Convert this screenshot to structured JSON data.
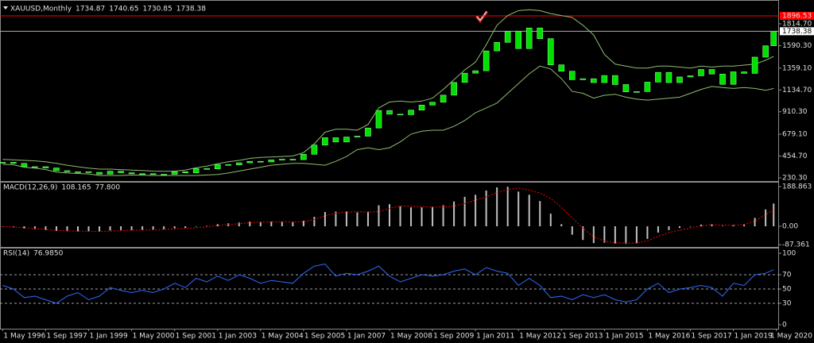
{
  "chart_data": [
    {
      "type": "candlestick",
      "title": "XAUUSD,Monthly",
      "ohlc": [
        1734.87,
        1740.65,
        1730.85,
        1738.38
      ],
      "x": [
        "1996-05",
        "1996-09",
        "1997-01",
        "1997-05",
        "1997-09",
        "1998-01",
        "1998-05",
        "1998-09",
        "1999-01",
        "1999-05",
        "1999-09",
        "2000-01",
        "2000-05",
        "2000-09",
        "2001-01",
        "2001-05",
        "2001-09",
        "2002-01",
        "2002-05",
        "2002-09",
        "2003-01",
        "2003-05",
        "2003-09",
        "2004-01",
        "2004-05",
        "2004-09",
        "2005-01",
        "2005-05",
        "2005-09",
        "2006-01",
        "2006-05",
        "2006-09",
        "2007-01",
        "2007-05",
        "2007-09",
        "2008-01",
        "2008-05",
        "2008-09",
        "2009-01",
        "2009-05",
        "2009-09",
        "2010-01",
        "2010-05",
        "2010-09",
        "2011-01",
        "2011-05",
        "2011-09",
        "2012-01",
        "2012-05",
        "2012-09",
        "2013-01",
        "2013-05",
        "2013-09",
        "2014-01",
        "2014-05",
        "2014-09",
        "2015-01",
        "2015-05",
        "2015-09",
        "2016-01",
        "2016-05",
        "2016-09",
        "2017-01",
        "2017-05",
        "2017-09",
        "2018-01",
        "2018-05",
        "2018-09",
        "2019-01",
        "2019-05",
        "2019-09",
        "2020-01",
        "2020-04"
      ],
      "values": [
        390,
        379,
        345,
        345,
        332,
        304,
        293,
        293,
        287,
        268,
        299,
        283,
        272,
        273,
        265,
        267,
        293,
        282,
        326,
        323,
        367,
        364,
        385,
        400,
        394,
        415,
        422,
        417,
        473,
        568,
        643,
        599,
        650,
        659,
        743,
        923,
        885,
        880,
        927,
        979,
        1008,
        1081,
        1212,
        1307,
        1332,
        1536,
        1624,
        1737,
        1560,
        1772,
        1662,
        1393,
        1327,
        1240,
        1250,
        1210,
        1283,
        1190,
        1115,
        1118,
        1215,
        1315,
        1210,
        1268,
        1280,
        1345,
        1298,
        1192,
        1321,
        1305,
        1472,
        1589,
        1738.38
      ],
      "upper_band": [
        420,
        415,
        410,
        405,
        395,
        380,
        360,
        345,
        330,
        320,
        320,
        315,
        310,
        305,
        300,
        298,
        300,
        310,
        335,
        350,
        375,
        395,
        410,
        430,
        440,
        445,
        450,
        455,
        490,
        580,
        700,
        730,
        730,
        720,
        780,
        950,
        1010,
        1020,
        1010,
        1020,
        1050,
        1140,
        1240,
        1340,
        1420,
        1600,
        1800,
        1900,
        1950,
        1960,
        1950,
        1920,
        1900,
        1880,
        1800,
        1700,
        1500,
        1400,
        1380,
        1360,
        1360,
        1380,
        1380,
        1370,
        1360,
        1380,
        1370,
        1380,
        1380,
        1390,
        1400,
        1440,
        1480
      ],
      "lower_band": [
        370,
        365,
        340,
        330,
        315,
        290,
        280,
        275,
        270,
        255,
        255,
        255,
        260,
        258,
        255,
        255,
        255,
        255,
        255,
        260,
        265,
        280,
        300,
        320,
        340,
        360,
        370,
        380,
        380,
        370,
        360,
        400,
        450,
        520,
        540,
        520,
        540,
        600,
        680,
        710,
        720,
        720,
        760,
        820,
        900,
        950,
        1000,
        1100,
        1200,
        1300,
        1380,
        1350,
        1250,
        1120,
        1100,
        1050,
        1080,
        1090,
        1060,
        1040,
        1030,
        1040,
        1050,
        1060,
        1100,
        1140,
        1170,
        1160,
        1150,
        1160,
        1150,
        1130,
        1150
      ],
      "color": "#00e000",
      "band_color": "#8fbc6f",
      "hline": {
        "value": 1896.53,
        "color": "#ff0000"
      },
      "xlim": [
        "1996-04",
        "2020-06"
      ],
      "ylim": [
        197.6,
        1994.4
      ],
      "yticks": [
        {
          "value": 230.3,
          "label": "230.30"
        },
        {
          "value": 454.7,
          "label": "454.70"
        },
        {
          "value": 679.1,
          "label": "679.10"
        },
        {
          "value": 910.3,
          "label": "910.30"
        },
        {
          "value": 1134.7,
          "label": "1134.70"
        },
        {
          "value": 1359.1,
          "label": "1359.10"
        },
        {
          "value": 1590.3,
          "label": "1590.30"
        },
        {
          "value": 1814.7,
          "label": "1814.70"
        }
      ]
    },
    {
      "type": "macd",
      "title": "MACD(12,26,9)",
      "header_values": [
        108.165,
        {
          "value": 77.8,
          "label": "77.800"
        }
      ],
      "values": [
        -2,
        -5,
        -10,
        -14,
        -18,
        -22,
        -24,
        -24,
        -24,
        -25,
        -20,
        -18,
        -18,
        -17,
        -16,
        -14,
        -10,
        -8,
        -2,
        2,
        10,
        14,
        18,
        22,
        22,
        22,
        22,
        20,
        26,
        45,
        68,
        70,
        70,
        66,
        70,
        100,
        105,
        95,
        90,
        90,
        92,
        100,
        118,
        140,
        150,
        170,
        185,
        188,
        165,
        150,
        120,
        60,
        10,
        -40,
        -65,
        -80,
        -78,
        -82,
        -84,
        -80,
        -60,
        -30,
        -18,
        -8,
        0,
        8,
        10,
        2,
        5,
        10,
        40,
        80,
        108.165
      ],
      "signal": [
        -1,
        -3,
        -7,
        -11,
        -15,
        -19,
        -22,
        -23,
        -24,
        -24,
        -23,
        -21,
        -19,
        -18,
        -17,
        -15,
        -13,
        -10,
        -7,
        -3,
        3,
        8,
        13,
        17,
        20,
        21,
        22,
        21,
        22,
        32,
        50,
        62,
        68,
        69,
        68,
        69,
        85,
        97,
        96,
        93,
        91,
        92,
        96,
        108,
        125,
        140,
        160,
        175,
        182,
        172,
        158,
        132,
        90,
        40,
        -10,
        -50,
        -70,
        -78,
        -80,
        -80,
        -70,
        -48,
        -30,
        -18,
        -8,
        2,
        7,
        6,
        5,
        8,
        25,
        55,
        77.8
      ],
      "color": "#c0c0c0",
      "signal_color": "#ff0000",
      "ylim": [
        -98.2,
        211.5
      ],
      "yticks": [
        188.863,
        {
          "value": 0,
          "label": "0.00"
        },
        -87.361
      ]
    },
    {
      "type": "line",
      "title": "RSI(14)",
      "header_values": [
        {
          "value": 76.985,
          "label": "76.9850"
        }
      ],
      "values": [
        55,
        50,
        38,
        40,
        35,
        30,
        40,
        45,
        35,
        40,
        52,
        48,
        45,
        48,
        45,
        50,
        58,
        52,
        65,
        60,
        68,
        62,
        70,
        65,
        58,
        62,
        60,
        58,
        72,
        82,
        85,
        68,
        72,
        70,
        75,
        82,
        68,
        60,
        65,
        70,
        68,
        70,
        75,
        78,
        70,
        80,
        75,
        72,
        55,
        65,
        55,
        38,
        40,
        35,
        42,
        38,
        42,
        35,
        32,
        35,
        50,
        58,
        45,
        50,
        52,
        55,
        52,
        40,
        58,
        55,
        70,
        72,
        76.985
      ],
      "color": "#2e6bff",
      "levels": [
        30,
        50,
        70
      ],
      "ylim": [
        -5.6,
        107.8
      ],
      "yticks": [
        0,
        30,
        50,
        70,
        100
      ],
      "xticks": [
        {
          "value": "1996-05",
          "label": "1 May 1996"
        },
        {
          "value": "1997-09",
          "label": "1 Sep 1997"
        },
        {
          "value": "1999-01",
          "label": "1 Jan 1999"
        },
        {
          "value": "2000-05",
          "label": "1 May 2000"
        },
        {
          "value": "2001-09",
          "label": "1 Sep 2001"
        },
        {
          "value": "2003-01",
          "label": "1 Jan 2003"
        },
        {
          "value": "2004-05",
          "label": "1 May 2004"
        },
        {
          "value": "2005-09",
          "label": "1 Sep 2005"
        },
        {
          "value": "2007-01",
          "label": "1 Jan 2007"
        },
        {
          "value": "2008-05",
          "label": "1 May 2008"
        },
        {
          "value": "2009-09",
          "label": "1 Sep 2009"
        },
        {
          "value": "2011-01",
          "label": "1 Jan 2011"
        },
        {
          "value": "2012-05",
          "label": "1 May 2012"
        },
        {
          "value": "2013-09",
          "label": "1 Sep 2013"
        },
        {
          "value": "2015-01",
          "label": "1 Jan 2015"
        },
        {
          "value": "2016-05",
          "label": "1 May 2016"
        },
        {
          "value": "2017-09",
          "label": "1 Sep 2017"
        },
        {
          "value": "2019-01",
          "label": "1 Jan 2019"
        },
        {
          "value": "2020-05",
          "label": "1 May 2020"
        }
      ]
    }
  ]
}
